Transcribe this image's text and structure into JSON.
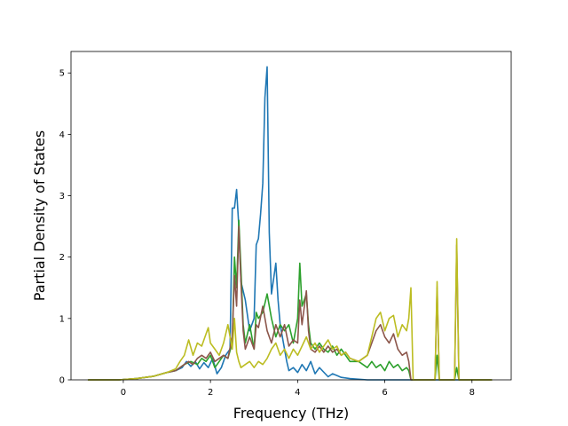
{
  "chart_data": {
    "type": "line",
    "title": "",
    "xlabel": "Frequency (THz)",
    "ylabel": "Partial Density of States",
    "xlim": [
      -1.2,
      8.9
    ],
    "ylim": [
      0,
      5.35
    ],
    "xticks": [
      0,
      2,
      4,
      6,
      8
    ],
    "yticks": [
      0,
      1,
      2,
      3,
      4,
      5
    ],
    "grid": false,
    "series": [
      {
        "color": "#1f77b4",
        "points": [
          [
            -0.8,
            0
          ],
          [
            -0.1,
            0
          ],
          [
            0.3,
            0.02
          ],
          [
            0.7,
            0.06
          ],
          [
            1.0,
            0.12
          ],
          [
            1.2,
            0.15
          ],
          [
            1.35,
            0.2
          ],
          [
            1.45,
            0.3
          ],
          [
            1.55,
            0.22
          ],
          [
            1.65,
            0.3
          ],
          [
            1.75,
            0.18
          ],
          [
            1.85,
            0.28
          ],
          [
            1.95,
            0.2
          ],
          [
            2.05,
            0.35
          ],
          [
            2.15,
            0.1
          ],
          [
            2.25,
            0.2
          ],
          [
            2.35,
            0.4
          ],
          [
            2.45,
            0.5
          ],
          [
            2.5,
            2.8
          ],
          [
            2.55,
            2.8
          ],
          [
            2.6,
            3.1
          ],
          [
            2.65,
            2.5
          ],
          [
            2.7,
            1.6
          ],
          [
            2.8,
            1.3
          ],
          [
            2.9,
            0.8
          ],
          [
            3.0,
            1.0
          ],
          [
            3.05,
            2.2
          ],
          [
            3.1,
            2.3
          ],
          [
            3.15,
            2.7
          ],
          [
            3.2,
            3.2
          ],
          [
            3.25,
            4.6
          ],
          [
            3.3,
            5.1
          ],
          [
            3.35,
            2.4
          ],
          [
            3.4,
            1.4
          ],
          [
            3.5,
            1.9
          ],
          [
            3.55,
            1.3
          ],
          [
            3.6,
            0.9
          ],
          [
            3.7,
            0.5
          ],
          [
            3.75,
            0.3
          ],
          [
            3.8,
            0.15
          ],
          [
            3.9,
            0.2
          ],
          [
            4.0,
            0.12
          ],
          [
            4.1,
            0.25
          ],
          [
            4.2,
            0.15
          ],
          [
            4.3,
            0.3
          ],
          [
            4.4,
            0.1
          ],
          [
            4.5,
            0.2
          ],
          [
            4.7,
            0.05
          ],
          [
            4.8,
            0.1
          ],
          [
            5.0,
            0.04
          ],
          [
            5.2,
            0.02
          ],
          [
            5.6,
            0.0
          ],
          [
            6.6,
            0.0
          ],
          [
            8.45,
            0.0
          ]
        ]
      },
      {
        "color": "#2ca02c",
        "points": [
          [
            -0.8,
            0
          ],
          [
            -0.1,
            0
          ],
          [
            0.3,
            0.02
          ],
          [
            0.7,
            0.06
          ],
          [
            1.0,
            0.12
          ],
          [
            1.2,
            0.15
          ],
          [
            1.4,
            0.25
          ],
          [
            1.55,
            0.3
          ],
          [
            1.7,
            0.25
          ],
          [
            1.8,
            0.35
          ],
          [
            1.9,
            0.3
          ],
          [
            2.0,
            0.4
          ],
          [
            2.1,
            0.2
          ],
          [
            2.2,
            0.3
          ],
          [
            2.3,
            0.4
          ],
          [
            2.4,
            0.35
          ],
          [
            2.5,
            0.6
          ],
          [
            2.55,
            2.0
          ],
          [
            2.6,
            1.5
          ],
          [
            2.65,
            2.6
          ],
          [
            2.7,
            1.8
          ],
          [
            2.75,
            0.9
          ],
          [
            2.8,
            0.6
          ],
          [
            2.9,
            0.9
          ],
          [
            3.0,
            0.5
          ],
          [
            3.05,
            1.1
          ],
          [
            3.1,
            1.0
          ],
          [
            3.2,
            1.1
          ],
          [
            3.3,
            1.4
          ],
          [
            3.4,
            1.0
          ],
          [
            3.5,
            0.7
          ],
          [
            3.6,
            0.9
          ],
          [
            3.7,
            0.8
          ],
          [
            3.8,
            0.9
          ],
          [
            3.9,
            0.6
          ],
          [
            4.0,
            1.0
          ],
          [
            4.05,
            1.9
          ],
          [
            4.1,
            1.2
          ],
          [
            4.2,
            1.4
          ],
          [
            4.25,
            0.9
          ],
          [
            4.3,
            0.6
          ],
          [
            4.4,
            0.5
          ],
          [
            4.5,
            0.6
          ],
          [
            4.6,
            0.5
          ],
          [
            4.7,
            0.45
          ],
          [
            4.8,
            0.55
          ],
          [
            4.9,
            0.4
          ],
          [
            5.0,
            0.5
          ],
          [
            5.1,
            0.4
          ],
          [
            5.2,
            0.3
          ],
          [
            5.4,
            0.3
          ],
          [
            5.6,
            0.2
          ],
          [
            5.7,
            0.3
          ],
          [
            5.8,
            0.2
          ],
          [
            5.9,
            0.25
          ],
          [
            6.0,
            0.15
          ],
          [
            6.1,
            0.3
          ],
          [
            6.2,
            0.2
          ],
          [
            6.3,
            0.25
          ],
          [
            6.4,
            0.15
          ],
          [
            6.5,
            0.2
          ],
          [
            6.55,
            0.15
          ],
          [
            6.6,
            0.0
          ],
          [
            7.15,
            0.0
          ],
          [
            7.2,
            0.4
          ],
          [
            7.25,
            0.0
          ],
          [
            7.6,
            0.0
          ],
          [
            7.65,
            0.2
          ],
          [
            7.7,
            0.0
          ],
          [
            8.45,
            0.0
          ]
        ]
      },
      {
        "color": "#8c564b",
        "points": [
          [
            -0.8,
            0
          ],
          [
            -0.1,
            0
          ],
          [
            0.3,
            0.02
          ],
          [
            0.7,
            0.06
          ],
          [
            1.0,
            0.12
          ],
          [
            1.2,
            0.15
          ],
          [
            1.4,
            0.25
          ],
          [
            1.5,
            0.3
          ],
          [
            1.6,
            0.25
          ],
          [
            1.7,
            0.35
          ],
          [
            1.8,
            0.4
          ],
          [
            1.9,
            0.35
          ],
          [
            2.0,
            0.45
          ],
          [
            2.1,
            0.3
          ],
          [
            2.2,
            0.35
          ],
          [
            2.3,
            0.4
          ],
          [
            2.4,
            0.35
          ],
          [
            2.5,
            0.7
          ],
          [
            2.55,
            1.7
          ],
          [
            2.6,
            1.2
          ],
          [
            2.65,
            2.5
          ],
          [
            2.7,
            1.6
          ],
          [
            2.75,
            0.8
          ],
          [
            2.8,
            0.5
          ],
          [
            2.9,
            0.7
          ],
          [
            3.0,
            0.5
          ],
          [
            3.05,
            0.9
          ],
          [
            3.1,
            0.85
          ],
          [
            3.2,
            1.2
          ],
          [
            3.3,
            0.8
          ],
          [
            3.4,
            0.6
          ],
          [
            3.5,
            0.9
          ],
          [
            3.6,
            0.7
          ],
          [
            3.7,
            0.9
          ],
          [
            3.8,
            0.55
          ],
          [
            3.9,
            0.65
          ],
          [
            4.0,
            0.6
          ],
          [
            4.05,
            1.3
          ],
          [
            4.1,
            0.9
          ],
          [
            4.2,
            1.45
          ],
          [
            4.25,
            0.8
          ],
          [
            4.3,
            0.5
          ],
          [
            4.4,
            0.45
          ],
          [
            4.5,
            0.55
          ],
          [
            4.6,
            0.45
          ],
          [
            4.7,
            0.55
          ],
          [
            4.8,
            0.45
          ],
          [
            4.9,
            0.5
          ],
          [
            5.0,
            0.4
          ],
          [
            5.1,
            0.45
          ],
          [
            5.2,
            0.35
          ],
          [
            5.4,
            0.3
          ],
          [
            5.6,
            0.4
          ],
          [
            5.7,
            0.6
          ],
          [
            5.8,
            0.8
          ],
          [
            5.9,
            0.9
          ],
          [
            6.0,
            0.7
          ],
          [
            6.1,
            0.6
          ],
          [
            6.2,
            0.75
          ],
          [
            6.3,
            0.5
          ],
          [
            6.4,
            0.4
          ],
          [
            6.5,
            0.45
          ],
          [
            6.55,
            0.3
          ],
          [
            6.6,
            0.0
          ],
          [
            7.15,
            0.0
          ],
          [
            7.2,
            1.5
          ],
          [
            7.25,
            0.0
          ],
          [
            7.6,
            0.0
          ],
          [
            7.65,
            2.2
          ],
          [
            7.7,
            0.0
          ],
          [
            8.45,
            0.0
          ]
        ]
      },
      {
        "color": "#bcbd22",
        "points": [
          [
            -0.8,
            0
          ],
          [
            -0.1,
            0
          ],
          [
            0.3,
            0.02
          ],
          [
            0.7,
            0.06
          ],
          [
            1.0,
            0.12
          ],
          [
            1.2,
            0.18
          ],
          [
            1.3,
            0.3
          ],
          [
            1.4,
            0.4
          ],
          [
            1.5,
            0.65
          ],
          [
            1.6,
            0.4
          ],
          [
            1.7,
            0.6
          ],
          [
            1.8,
            0.55
          ],
          [
            1.9,
            0.75
          ],
          [
            1.95,
            0.85
          ],
          [
            2.0,
            0.6
          ],
          [
            2.1,
            0.5
          ],
          [
            2.2,
            0.4
          ],
          [
            2.3,
            0.6
          ],
          [
            2.4,
            0.9
          ],
          [
            2.5,
            0.5
          ],
          [
            2.55,
            1.0
          ],
          [
            2.6,
            0.45
          ],
          [
            2.65,
            0.3
          ],
          [
            2.7,
            0.2
          ],
          [
            2.8,
            0.25
          ],
          [
            2.9,
            0.3
          ],
          [
            3.0,
            0.2
          ],
          [
            3.1,
            0.3
          ],
          [
            3.2,
            0.25
          ],
          [
            3.3,
            0.35
          ],
          [
            3.4,
            0.5
          ],
          [
            3.5,
            0.6
          ],
          [
            3.6,
            0.4
          ],
          [
            3.7,
            0.5
          ],
          [
            3.8,
            0.35
          ],
          [
            3.9,
            0.5
          ],
          [
            4.0,
            0.4
          ],
          [
            4.1,
            0.55
          ],
          [
            4.2,
            0.7
          ],
          [
            4.3,
            0.5
          ],
          [
            4.4,
            0.6
          ],
          [
            4.5,
            0.45
          ],
          [
            4.6,
            0.55
          ],
          [
            4.7,
            0.65
          ],
          [
            4.8,
            0.5
          ],
          [
            4.9,
            0.55
          ],
          [
            5.0,
            0.4
          ],
          [
            5.1,
            0.45
          ],
          [
            5.2,
            0.35
          ],
          [
            5.4,
            0.3
          ],
          [
            5.6,
            0.4
          ],
          [
            5.7,
            0.7
          ],
          [
            5.8,
            1.0
          ],
          [
            5.9,
            1.1
          ],
          [
            6.0,
            0.8
          ],
          [
            6.1,
            1.0
          ],
          [
            6.2,
            1.05
          ],
          [
            6.3,
            0.7
          ],
          [
            6.4,
            0.9
          ],
          [
            6.5,
            0.8
          ],
          [
            6.55,
            1.0
          ],
          [
            6.6,
            1.5
          ],
          [
            6.65,
            0.0
          ],
          [
            7.15,
            0.0
          ],
          [
            7.2,
            1.6
          ],
          [
            7.25,
            0.0
          ],
          [
            7.6,
            0.0
          ],
          [
            7.65,
            2.3
          ],
          [
            7.7,
            0.0
          ],
          [
            8.45,
            0.0
          ]
        ]
      }
    ]
  }
}
